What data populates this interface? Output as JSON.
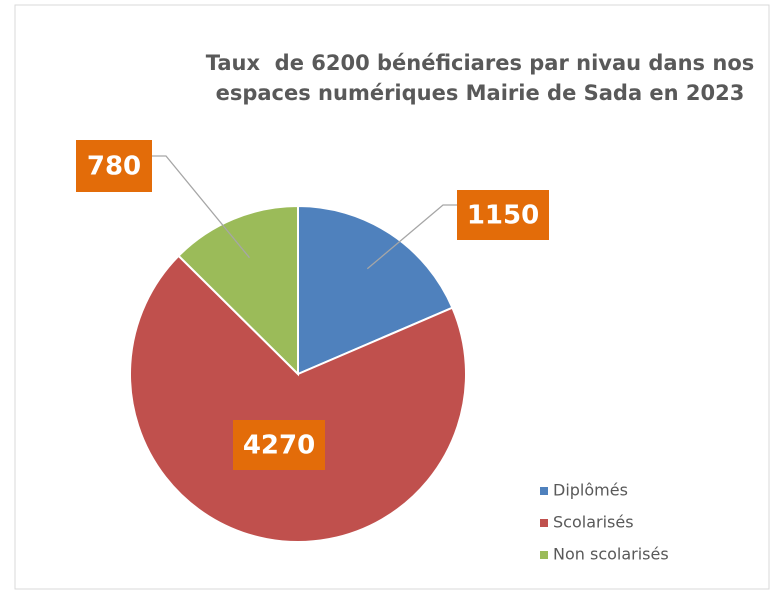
{
  "chart_data": {
    "type": "pie",
    "title": "Taux  de 6200 bénéficiares par nivau dans nos espaces numériques Mairie de Sada en 2023",
    "categories": [
      "Diplômés",
      "Scolarisés",
      "Non scolarisés"
    ],
    "values": [
      1150,
      4270,
      780
    ],
    "colors": [
      "#4f81bd",
      "#c0504d",
      "#9bbb59"
    ],
    "label_color": "#e36c09",
    "legend": "right"
  }
}
